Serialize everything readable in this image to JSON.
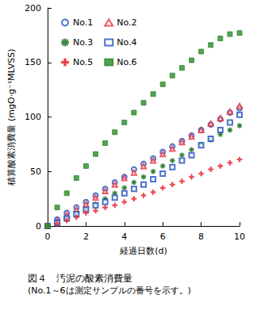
{
  "chart_data": {
    "type": "scatter",
    "title": "図４　汚泥の酸素消費量",
    "subtitle": "(No.1～6は測定サンプルの番号を示す。)",
    "x_label": "経過日数(d)",
    "y_label": "積算酸素消費量 (mgO·g⁻¹MLVSS)",
    "x": [
      0,
      0.5,
      1,
      1.5,
      2,
      2.5,
      3,
      3.5,
      4,
      4.5,
      5,
      5.5,
      6,
      6.5,
      7,
      7.5,
      8,
      8.5,
      9,
      9.5,
      10
    ],
    "series": [
      {
        "name": "No.1",
        "color": "#1f4fbf",
        "marker": "circle",
        "values": [
          0,
          6,
          12,
          17,
          22,
          28,
          34,
          40,
          45,
          52,
          57,
          62,
          68,
          73,
          78,
          83,
          88,
          93,
          98,
          104,
          108
        ]
      },
      {
        "name": "No.2",
        "color": "#e8303a",
        "marker": "triangle",
        "values": [
          0,
          5,
          10,
          15,
          20,
          26,
          32,
          38,
          44,
          49,
          55,
          60,
          66,
          71,
          77,
          82,
          88,
          94,
          99,
          105,
          110
        ]
      },
      {
        "name": "No.3",
        "color": "#2e7d32",
        "marker": "asterisk",
        "values": [
          0,
          3,
          7,
          11,
          15,
          20,
          25,
          30,
          35,
          40,
          45,
          50,
          55,
          60,
          65,
          70,
          75,
          79,
          84,
          88,
          92
        ]
      },
      {
        "name": "No.4",
        "color": "#1f4fbf",
        "marker": "square",
        "values": [
          0,
          3,
          7,
          11,
          15,
          19,
          22,
          26,
          30,
          34,
          38,
          43,
          48,
          54,
          60,
          65,
          74,
          80,
          88,
          95,
          102
        ]
      },
      {
        "name": "No.5",
        "color": "#e8303a",
        "marker": "plus",
        "values": [
          0,
          2,
          5,
          8,
          12,
          14,
          17,
          19,
          22,
          25,
          28,
          31,
          35,
          38,
          41,
          45,
          48,
          52,
          55,
          58,
          61
        ]
      },
      {
        "name": "No.6",
        "color": "#2a8a2a",
        "marker": "filled_square",
        "values": [
          0,
          17,
          30,
          44,
          55,
          66,
          76,
          86,
          95,
          104,
          113,
          121,
          130,
          138,
          145,
          152,
          160,
          166,
          172,
          176,
          177
        ]
      }
    ],
    "xlim": [
      0,
      10
    ],
    "xticks": [
      0,
      2,
      4,
      6,
      8,
      10
    ],
    "ylim": [
      0,
      200
    ],
    "yticks": [
      0,
      50,
      100,
      150,
      200
    ],
    "grid": false,
    "legend": "upper left"
  }
}
